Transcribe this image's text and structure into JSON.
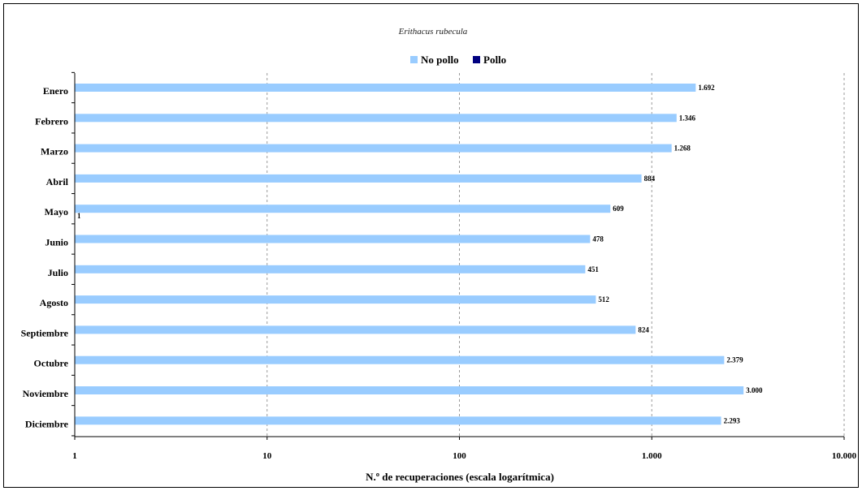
{
  "chart_data": {
    "type": "bar",
    "orientation": "horizontal",
    "title": "Erithacus rubecula",
    "xlabel": "N.º de recuperaciones (escala logarítmica)",
    "ylabel": "",
    "x_scale": "log",
    "xlim": [
      1,
      10000
    ],
    "x_ticks": [
      1,
      10,
      100,
      1000,
      10000
    ],
    "x_tick_labels": [
      "1",
      "10",
      "100",
      "1.000",
      "10.000"
    ],
    "grid": "vertical-dashed",
    "legend_position": "top-center",
    "categories": [
      "Enero",
      "Febrero",
      "Marzo",
      "Abril",
      "Mayo",
      "Junio",
      "Julio",
      "Agosto",
      "Septiembre",
      "Octubre",
      "Noviembre",
      "Diciembre"
    ],
    "series": [
      {
        "name": "No pollo",
        "color": "#99ccff",
        "values": [
          1692,
          1346,
          1268,
          884,
          609,
          478,
          451,
          512,
          824,
          2379,
          3000,
          2293
        ],
        "labels": [
          "1.692",
          "1.346",
          "1.268",
          "884",
          "609",
          "478",
          "451",
          "512",
          "824",
          "2.379",
          "3.000",
          "2.293"
        ]
      },
      {
        "name": "Pollo",
        "color": "#000080",
        "values": [
          null,
          null,
          null,
          null,
          1,
          null,
          null,
          null,
          null,
          null,
          null,
          null
        ],
        "labels": [
          "",
          "",
          "",
          "",
          "1",
          "",
          "",
          "",
          "",
          "",
          "",
          ""
        ]
      }
    ]
  }
}
